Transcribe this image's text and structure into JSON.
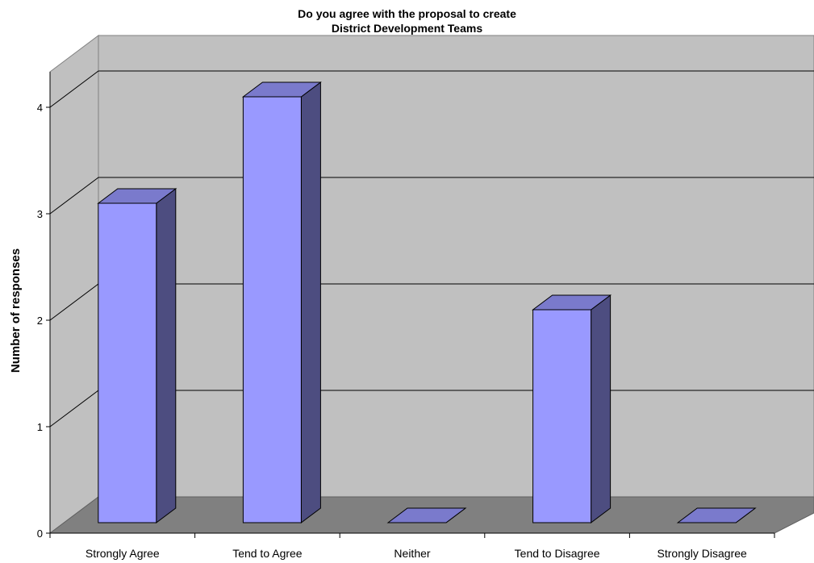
{
  "chart_data": {
    "type": "bar",
    "title_line1": "Do you agree with the proposal to create",
    "title_line2": "District Development Teams",
    "ylabel": "Number of responses",
    "xlabel": "",
    "categories": [
      "Strongly Agree",
      "Tend to Agree",
      "Neither",
      "Tend to Disagree",
      "Strongly Disagree"
    ],
    "values": [
      3,
      4,
      0,
      2,
      0
    ],
    "yticks": [
      "0",
      "1",
      "2",
      "3",
      "4"
    ],
    "ylim": [
      0,
      4
    ],
    "grid": true,
    "legend": "none",
    "style": "3d-column",
    "colors": {
      "bar_front": "#9999ff",
      "bar_side": "#4d4d80",
      "bar_top": "#7a7acc",
      "back_wall": "#c0c0c0",
      "side_wall": "#c0c0c0",
      "floor": "#808080"
    }
  }
}
